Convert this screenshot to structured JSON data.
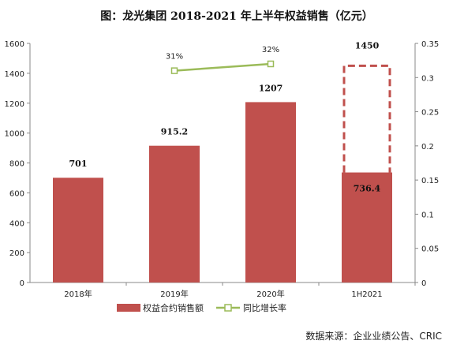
{
  "chart_data": {
    "type": "bar",
    "title": "图：龙光集团 2018-2021 年上半年权益销售（亿元）",
    "source": "数据来源：企业业绩公告、CRIC",
    "categories": [
      "2018年",
      "2019年",
      "2020年",
      "1H2021"
    ],
    "series": [
      {
        "name": "权益合约销售额",
        "type": "bar",
        "axis": "left",
        "values": [
          701,
          915.2,
          1207,
          736.4
        ],
        "labels": [
          "701",
          "915.2",
          "1207",
          "736.4"
        ],
        "color": "#c0504d"
      },
      {
        "name": "同比增长率",
        "type": "line",
        "axis": "right",
        "values": [
          null,
          0.31,
          0.32,
          null
        ],
        "labels": [
          "",
          "31%",
          "32%",
          ""
        ],
        "color": "#9bbb59"
      }
    ],
    "target": {
      "category": "1H2021",
      "value": 1450,
      "label": "1450",
      "style": "dashed-outline",
      "color": "#c0504d"
    },
    "y_left": {
      "ylim": [
        0,
        1600
      ],
      "ticks": [
        "0",
        "200",
        "400",
        "600",
        "800",
        "1000",
        "1200",
        "1400",
        "1600"
      ]
    },
    "y_right": {
      "ylim": [
        0,
        0.35
      ],
      "ticks": [
        "0",
        "0.05",
        "0.1",
        "0.15",
        "0.2",
        "0.25",
        "0.3",
        "0.35"
      ]
    },
    "grid": false,
    "legend": "bottom"
  }
}
